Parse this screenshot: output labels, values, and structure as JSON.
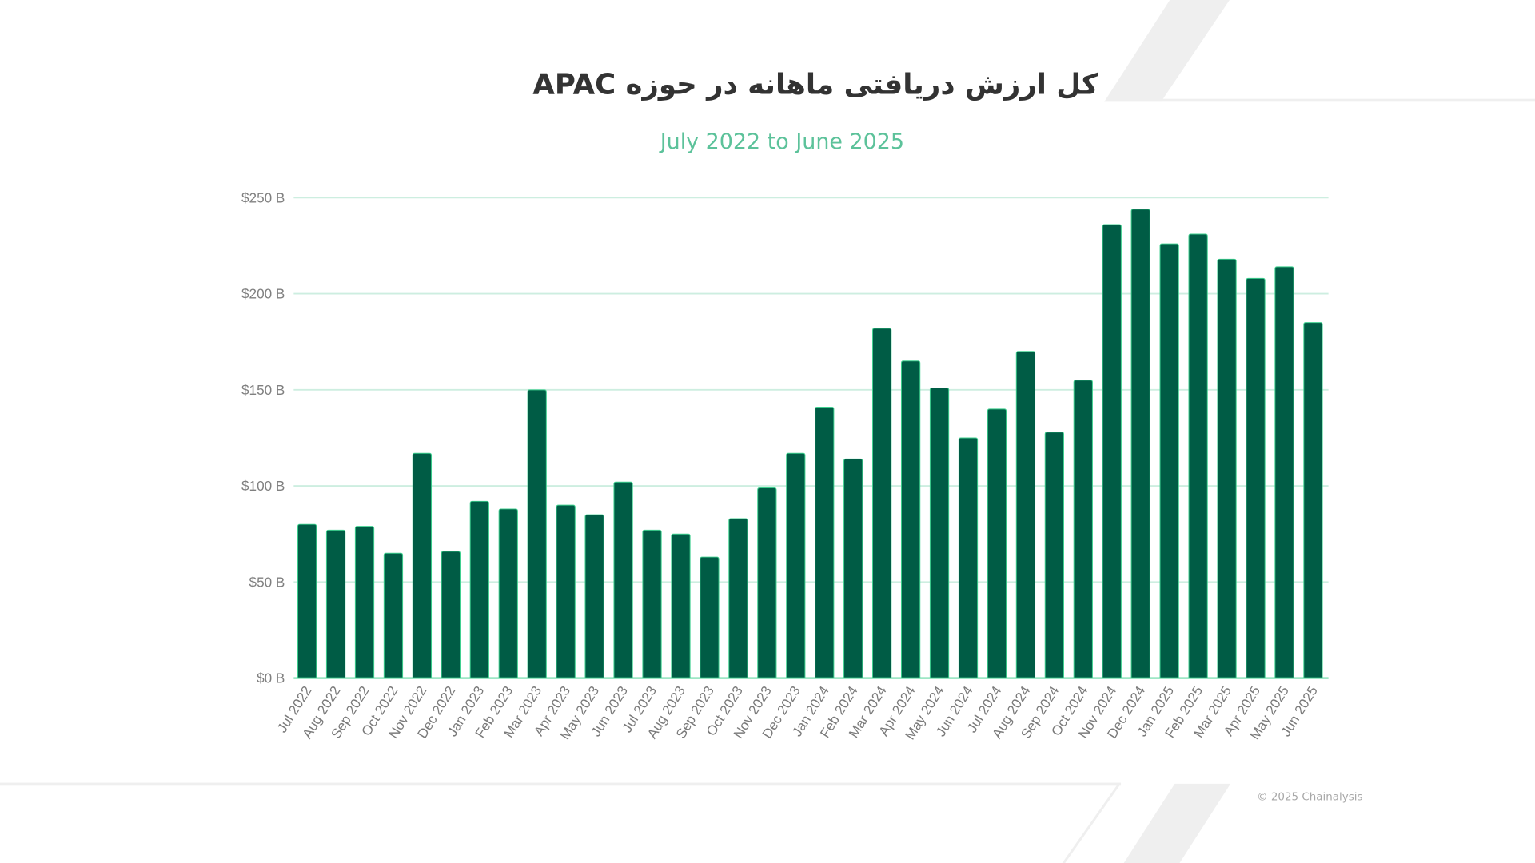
{
  "chart_data": {
    "type": "bar",
    "title": "کل ارزش دریافتی ماهانه در حوزه APAC",
    "subtitle": "July 2022 to June 2025",
    "xlabel": "",
    "ylabel": "",
    "ylim": [
      0,
      250
    ],
    "yticks": [
      0,
      50,
      100,
      150,
      200,
      250
    ],
    "ytick_labels": [
      "$0 B",
      "$50 B",
      "$100 B",
      "$150 B",
      "$200 B",
      "$250 B"
    ],
    "grid": true,
    "categories": [
      "Jul 2022",
      "Aug 2022",
      "Sep 2022",
      "Oct 2022",
      "Nov 2022",
      "Dec 2022",
      "Jan 2023",
      "Feb 2023",
      "Mar 2023",
      "Apr 2023",
      "May 2023",
      "Jun 2023",
      "Jul 2023",
      "Aug 2023",
      "Sep 2023",
      "Oct 2023",
      "Nov 2023",
      "Dec 2023",
      "Jan 2024",
      "Feb 2024",
      "Mar 2024",
      "Apr 2024",
      "May 2024",
      "Jun 2024",
      "Jul 2024",
      "Aug 2024",
      "Sep 2024",
      "Oct 2024",
      "Nov 2024",
      "Dec 2024",
      "Jan 2025",
      "Feb 2025",
      "Mar 2025",
      "Apr 2025",
      "May 2025",
      "Jun 2025"
    ],
    "values": [
      80,
      77,
      79,
      65,
      117,
      66,
      92,
      88,
      150,
      90,
      85,
      102,
      77,
      75,
      63,
      83,
      99,
      117,
      141,
      114,
      182,
      165,
      151,
      125,
      140,
      170,
      128,
      155,
      236,
      244,
      226,
      231,
      218,
      208,
      214,
      185
    ],
    "unit": "$ B",
    "colors": {
      "bar": "#005c45",
      "bar_outline": "#3ecf8e",
      "grid": "#cdeee0",
      "subtitle": "#5cc29a"
    }
  },
  "footer": {
    "copyright": "© 2025 Chainalysis"
  }
}
